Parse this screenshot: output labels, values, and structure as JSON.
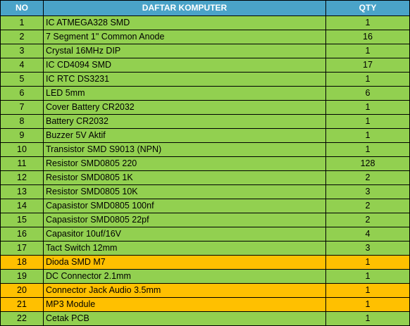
{
  "colors": {
    "header_bg": "#4aa3c8",
    "header_text": "#ffffff",
    "row_bg": "#92d050",
    "highlight_bg": "#ffc000",
    "border": "#000000"
  },
  "headers": {
    "no": "NO",
    "name": "DAFTAR KOMPUTER",
    "qty": "QTY"
  },
  "rows": [
    {
      "no": "1",
      "name": "IC ATMEGA328 SMD",
      "qty": "1",
      "highlight": false
    },
    {
      "no": "2",
      "name": "7 Segment 1\" Common Anode",
      "qty": "16",
      "highlight": false
    },
    {
      "no": "3",
      "name": "Crystal 16MHz DIP",
      "qty": "1",
      "highlight": false
    },
    {
      "no": "4",
      "name": "IC CD4094 SMD",
      "qty": "17",
      "highlight": false
    },
    {
      "no": "5",
      "name": "IC RTC DS3231",
      "qty": "1",
      "highlight": false
    },
    {
      "no": "6",
      "name": "LED 5mm",
      "qty": "6",
      "highlight": false
    },
    {
      "no": "7",
      "name": "Cover Battery CR2032",
      "qty": "1",
      "highlight": false
    },
    {
      "no": "8",
      "name": "Battery CR2032",
      "qty": "1",
      "highlight": false
    },
    {
      "no": "9",
      "name": "Buzzer 5V Aktif",
      "qty": "1",
      "highlight": false
    },
    {
      "no": "10",
      "name": "Transistor SMD S9013 (NPN)",
      "qty": "1",
      "highlight": false
    },
    {
      "no": "11",
      "name": "Resistor SMD0805 220",
      "qty": "128",
      "highlight": false
    },
    {
      "no": "12",
      "name": "Resistor SMD0805 1K",
      "qty": "2",
      "highlight": false
    },
    {
      "no": "13",
      "name": "Resistor SMD0805 10K",
      "qty": "3",
      "highlight": false
    },
    {
      "no": "14",
      "name": "Capasistor SMD0805 100nf",
      "qty": "2",
      "highlight": false
    },
    {
      "no": "15",
      "name": "Capasistor SMD0805 22pf",
      "qty": "2",
      "highlight": false
    },
    {
      "no": "16",
      "name": "Capasitor 10uf/16V",
      "qty": "4",
      "highlight": false
    },
    {
      "no": "17",
      "name": "Tact Switch 12mm",
      "qty": "3",
      "highlight": false
    },
    {
      "no": "18",
      "name": "Dioda SMD M7",
      "qty": "1",
      "highlight": true
    },
    {
      "no": "19",
      "name": "DC Connector 2.1mm",
      "qty": "1",
      "highlight": false
    },
    {
      "no": "20",
      "name": "Connector Jack Audio 3.5mm",
      "qty": "1",
      "highlight": true
    },
    {
      "no": "21",
      "name": "MP3 Module",
      "qty": "1",
      "highlight": true
    },
    {
      "no": "22",
      "name": "Cetak PCB",
      "qty": "1",
      "highlight": false
    }
  ]
}
